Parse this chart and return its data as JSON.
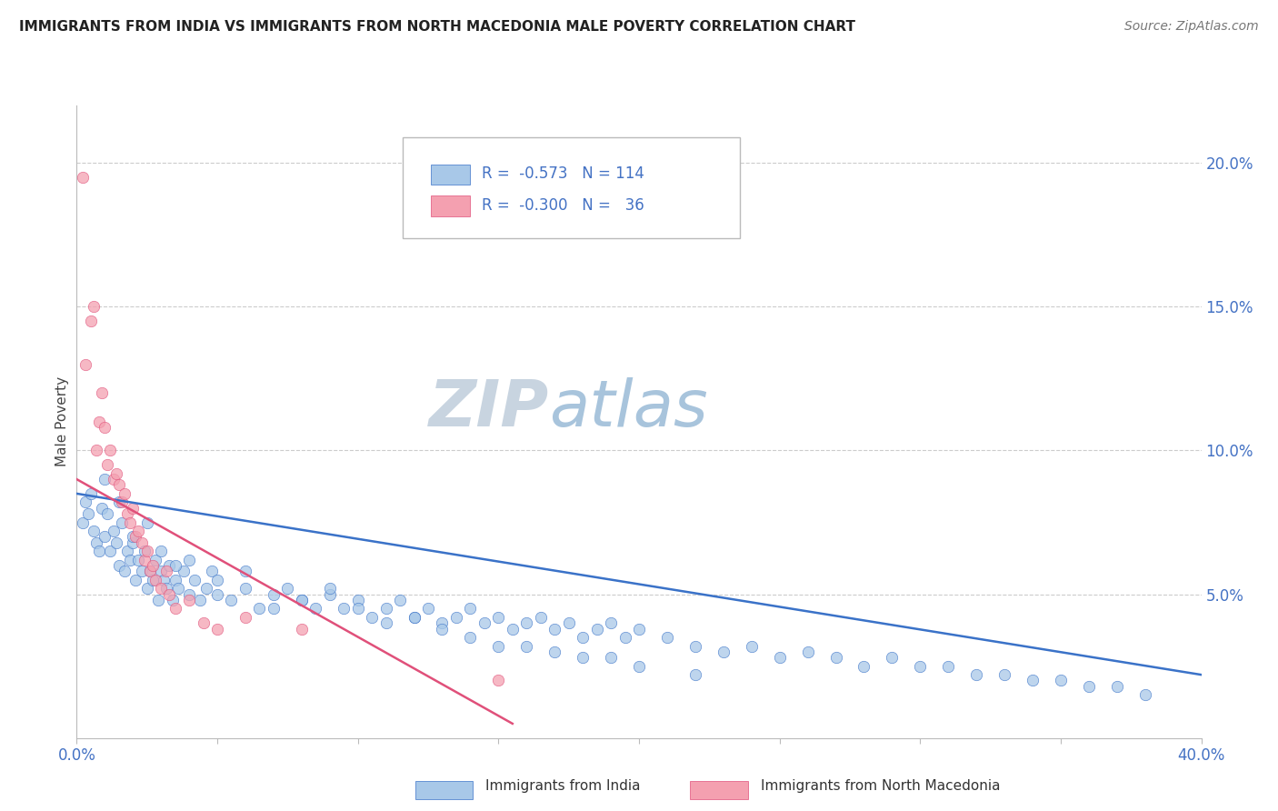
{
  "title": "IMMIGRANTS FROM INDIA VS IMMIGRANTS FROM NORTH MACEDONIA MALE POVERTY CORRELATION CHART",
  "source": "Source: ZipAtlas.com",
  "ylabel": "Male Poverty",
  "india_color": "#a8c8e8",
  "north_mac_color": "#f4a0b0",
  "india_line_color": "#3a72c8",
  "north_mac_line_color": "#e0507a",
  "background_color": "#ffffff",
  "watermark_zip": "ZIP",
  "watermark_atlas": "atlas",
  "watermark_color_zip": "#c8d8e8",
  "watermark_color_atlas": "#a8c4e0",
  "xlim": [
    0.0,
    0.4
  ],
  "ylim": [
    0.0,
    0.22
  ],
  "india_line_x0": 0.0,
  "india_line_y0": 0.085,
  "india_line_x1": 0.4,
  "india_line_y1": 0.022,
  "nm_line_x0": 0.0,
  "nm_line_y0": 0.09,
  "nm_line_x1": 0.155,
  "nm_line_y1": 0.005,
  "india_scatter_x": [
    0.002,
    0.003,
    0.004,
    0.005,
    0.006,
    0.007,
    0.008,
    0.009,
    0.01,
    0.011,
    0.012,
    0.013,
    0.014,
    0.015,
    0.016,
    0.017,
    0.018,
    0.019,
    0.02,
    0.021,
    0.022,
    0.023,
    0.024,
    0.025,
    0.026,
    0.027,
    0.028,
    0.029,
    0.03,
    0.031,
    0.032,
    0.033,
    0.034,
    0.035,
    0.036,
    0.038,
    0.04,
    0.042,
    0.044,
    0.046,
    0.048,
    0.05,
    0.055,
    0.06,
    0.065,
    0.07,
    0.075,
    0.08,
    0.085,
    0.09,
    0.095,
    0.1,
    0.105,
    0.11,
    0.115,
    0.12,
    0.125,
    0.13,
    0.135,
    0.14,
    0.145,
    0.15,
    0.155,
    0.16,
    0.165,
    0.17,
    0.175,
    0.18,
    0.185,
    0.19,
    0.195,
    0.2,
    0.21,
    0.22,
    0.23,
    0.24,
    0.25,
    0.26,
    0.27,
    0.28,
    0.29,
    0.3,
    0.31,
    0.32,
    0.33,
    0.34,
    0.35,
    0.36,
    0.37,
    0.38,
    0.01,
    0.015,
    0.02,
    0.025,
    0.03,
    0.035,
    0.04,
    0.05,
    0.06,
    0.07,
    0.08,
    0.09,
    0.1,
    0.11,
    0.12,
    0.13,
    0.14,
    0.15,
    0.16,
    0.17,
    0.18,
    0.19,
    0.2,
    0.22
  ],
  "india_scatter_y": [
    0.075,
    0.082,
    0.078,
    0.085,
    0.072,
    0.068,
    0.065,
    0.08,
    0.07,
    0.078,
    0.065,
    0.072,
    0.068,
    0.06,
    0.075,
    0.058,
    0.065,
    0.062,
    0.068,
    0.055,
    0.062,
    0.058,
    0.065,
    0.052,
    0.058,
    0.055,
    0.062,
    0.048,
    0.058,
    0.055,
    0.052,
    0.06,
    0.048,
    0.055,
    0.052,
    0.058,
    0.05,
    0.055,
    0.048,
    0.052,
    0.058,
    0.05,
    0.048,
    0.052,
    0.045,
    0.05,
    0.052,
    0.048,
    0.045,
    0.05,
    0.045,
    0.048,
    0.042,
    0.045,
    0.048,
    0.042,
    0.045,
    0.04,
    0.042,
    0.045,
    0.04,
    0.042,
    0.038,
    0.04,
    0.042,
    0.038,
    0.04,
    0.035,
    0.038,
    0.04,
    0.035,
    0.038,
    0.035,
    0.032,
    0.03,
    0.032,
    0.028,
    0.03,
    0.028,
    0.025,
    0.028,
    0.025,
    0.025,
    0.022,
    0.022,
    0.02,
    0.02,
    0.018,
    0.018,
    0.015,
    0.09,
    0.082,
    0.07,
    0.075,
    0.065,
    0.06,
    0.062,
    0.055,
    0.058,
    0.045,
    0.048,
    0.052,
    0.045,
    0.04,
    0.042,
    0.038,
    0.035,
    0.032,
    0.032,
    0.03,
    0.028,
    0.028,
    0.025,
    0.022
  ],
  "nm_scatter_x": [
    0.002,
    0.003,
    0.005,
    0.006,
    0.007,
    0.008,
    0.009,
    0.01,
    0.011,
    0.012,
    0.013,
    0.014,
    0.015,
    0.016,
    0.017,
    0.018,
    0.019,
    0.02,
    0.021,
    0.022,
    0.023,
    0.024,
    0.025,
    0.026,
    0.027,
    0.028,
    0.03,
    0.032,
    0.033,
    0.035,
    0.04,
    0.045,
    0.05,
    0.06,
    0.08,
    0.15
  ],
  "nm_scatter_y": [
    0.195,
    0.13,
    0.145,
    0.15,
    0.1,
    0.11,
    0.12,
    0.108,
    0.095,
    0.1,
    0.09,
    0.092,
    0.088,
    0.082,
    0.085,
    0.078,
    0.075,
    0.08,
    0.07,
    0.072,
    0.068,
    0.062,
    0.065,
    0.058,
    0.06,
    0.055,
    0.052,
    0.058,
    0.05,
    0.045,
    0.048,
    0.04,
    0.038,
    0.042,
    0.038,
    0.02
  ]
}
